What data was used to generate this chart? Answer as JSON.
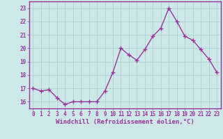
{
  "x": [
    0,
    1,
    2,
    3,
    4,
    5,
    6,
    7,
    8,
    9,
    10,
    11,
    12,
    13,
    14,
    15,
    16,
    17,
    18,
    19,
    20,
    21,
    22,
    23
  ],
  "y": [
    17.0,
    16.8,
    16.9,
    16.3,
    15.8,
    16.0,
    16.0,
    16.0,
    16.0,
    16.8,
    18.2,
    20.0,
    19.5,
    19.1,
    19.9,
    20.9,
    21.5,
    23.0,
    22.0,
    20.9,
    20.6,
    19.9,
    19.2,
    18.2
  ],
  "line_color": "#993399",
  "marker": "+",
  "marker_size": 4,
  "xlabel": "Windchill (Refroidissement éolien,°C)",
  "xlim": [
    -0.5,
    23.5
  ],
  "ylim": [
    15.5,
    23.5
  ],
  "yticks": [
    16,
    17,
    18,
    19,
    20,
    21,
    22,
    23
  ],
  "xticks": [
    0,
    1,
    2,
    3,
    4,
    5,
    6,
    7,
    8,
    9,
    10,
    11,
    12,
    13,
    14,
    15,
    16,
    17,
    18,
    19,
    20,
    21,
    22,
    23
  ],
  "background_color": "#cce8e8",
  "grid_color": "#aacccc",
  "border_color": "#993399",
  "tick_color": "#993399",
  "xlabel_color": "#993399",
  "line_width": 1.0,
  "tick_fontsize": 5.5,
  "xlabel_fontsize": 6.5
}
